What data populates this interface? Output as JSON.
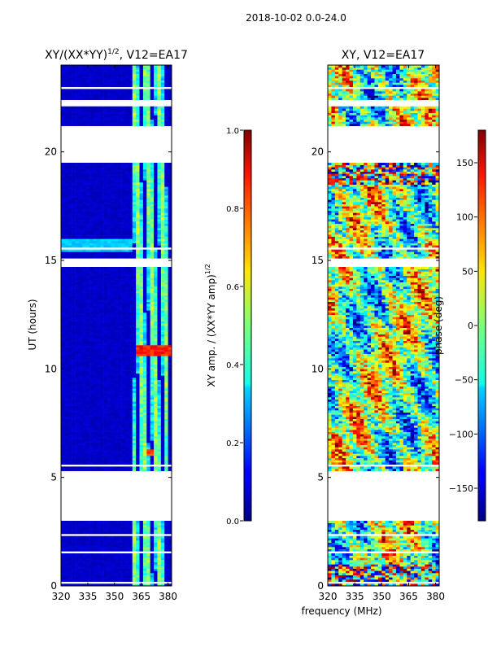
{
  "figure_title": "2018-10-02 0.0-24.0",
  "shared_xlabel": "frequency (MHz)",
  "colors": {
    "white_gap": "#ffffff",
    "frame": "#000000",
    "jet_low": "#00007f",
    "jet_high": "#7f0000"
  },
  "chart_data": [
    {
      "type": "heatmap",
      "name": "amplitude-panel",
      "title_main": "XY/(XX*YY)",
      "title_exp": "1/2",
      "title_tail": ", V12=EA17",
      "xlabel": "",
      "ylabel": "UT (hours)",
      "xlim": [
        320,
        382
      ],
      "ylim": [
        0,
        24
      ],
      "xticks": [
        320,
        335,
        350,
        365,
        380
      ],
      "yticks": [
        0,
        5,
        10,
        15,
        20
      ],
      "colorbar": {
        "label_main": "XY amp. / (XX*YY amp)",
        "label_exp": "1/2",
        "range": [
          0.0,
          1.0
        ],
        "ticks": [
          "0.0",
          "0.2",
          "0.4",
          "0.6",
          "0.8",
          "1.0"
        ],
        "tick_values": [
          0.0,
          0.2,
          0.4,
          0.6,
          0.8,
          1.0
        ]
      },
      "background_value": 0.05,
      "bright_band": {
        "x_range": [
          360,
          380
        ],
        "typical_value": 0.4
      },
      "hot_spots": [
        {
          "x": [
            362,
            381
          ],
          "y": [
            10.6,
            11.1
          ],
          "value": 0.9
        },
        {
          "x": [
            368,
            372
          ],
          "y": [
            6.0,
            6.3
          ],
          "value": 0.85
        }
      ],
      "gaps_hours": [
        [
          0.15,
          0.2
        ],
        [
          1.0,
          1.05
        ],
        [
          1.55,
          1.6
        ],
        [
          2.0,
          2.05
        ],
        [
          2.35,
          2.4
        ],
        [
          3.0,
          5.3
        ],
        [
          5.55,
          5.6
        ],
        [
          6.6,
          6.65
        ],
        [
          7.3,
          7.35
        ],
        [
          8.0,
          8.05
        ],
        [
          8.5,
          8.55
        ],
        [
          9.4,
          9.45
        ],
        [
          10.2,
          10.25
        ],
        [
          11.3,
          11.35
        ],
        [
          12.0,
          12.05
        ],
        [
          12.7,
          12.75
        ],
        [
          13.4,
          13.45
        ],
        [
          14.4,
          14.45
        ],
        [
          14.7,
          15.1
        ],
        [
          15.55,
          15.6
        ],
        [
          16.6,
          16.65
        ],
        [
          17.0,
          17.05
        ],
        [
          17.6,
          17.65
        ],
        [
          18.0,
          18.05
        ],
        [
          19.5,
          21.2
        ],
        [
          21.5,
          21.55
        ],
        [
          22.1,
          22.4
        ],
        [
          22.9,
          23.0
        ]
      ]
    },
    {
      "type": "heatmap",
      "name": "phase-panel",
      "title_main": "XY, V12=EA17",
      "xlabel": "frequency (MHz)",
      "ylabel": "",
      "xlim": [
        320,
        382
      ],
      "ylim": [
        0,
        24
      ],
      "xticks": [
        320,
        335,
        350,
        365,
        380
      ],
      "yticks": [
        0,
        5,
        10,
        15,
        20
      ],
      "colorbar": {
        "label_main": "phase (deg)",
        "range": [
          -180,
          180
        ],
        "ticks": [
          "150",
          "100",
          "50",
          "0",
          "−50",
          "−100",
          "−150"
        ],
        "tick_values": [
          150,
          100,
          50,
          0,
          -50,
          -100,
          -150
        ]
      },
      "gaps_hours": [
        [
          0.15,
          0.2
        ],
        [
          1.0,
          1.05
        ],
        [
          1.55,
          1.6
        ],
        [
          2.0,
          2.05
        ],
        [
          2.35,
          2.4
        ],
        [
          3.0,
          5.3
        ],
        [
          5.55,
          5.6
        ],
        [
          6.6,
          6.65
        ],
        [
          7.3,
          7.35
        ],
        [
          8.0,
          8.05
        ],
        [
          8.5,
          8.55
        ],
        [
          9.4,
          9.45
        ],
        [
          10.2,
          10.25
        ],
        [
          11.3,
          11.35
        ],
        [
          12.0,
          12.05
        ],
        [
          12.7,
          12.75
        ],
        [
          13.4,
          13.45
        ],
        [
          14.4,
          14.45
        ],
        [
          14.7,
          15.1
        ],
        [
          15.55,
          15.6
        ],
        [
          16.6,
          16.65
        ],
        [
          17.0,
          17.05
        ],
        [
          17.6,
          17.65
        ],
        [
          18.0,
          18.05
        ],
        [
          19.5,
          21.2
        ],
        [
          21.5,
          21.55
        ],
        [
          22.1,
          22.4
        ],
        [
          22.9,
          23.0
        ]
      ]
    }
  ]
}
